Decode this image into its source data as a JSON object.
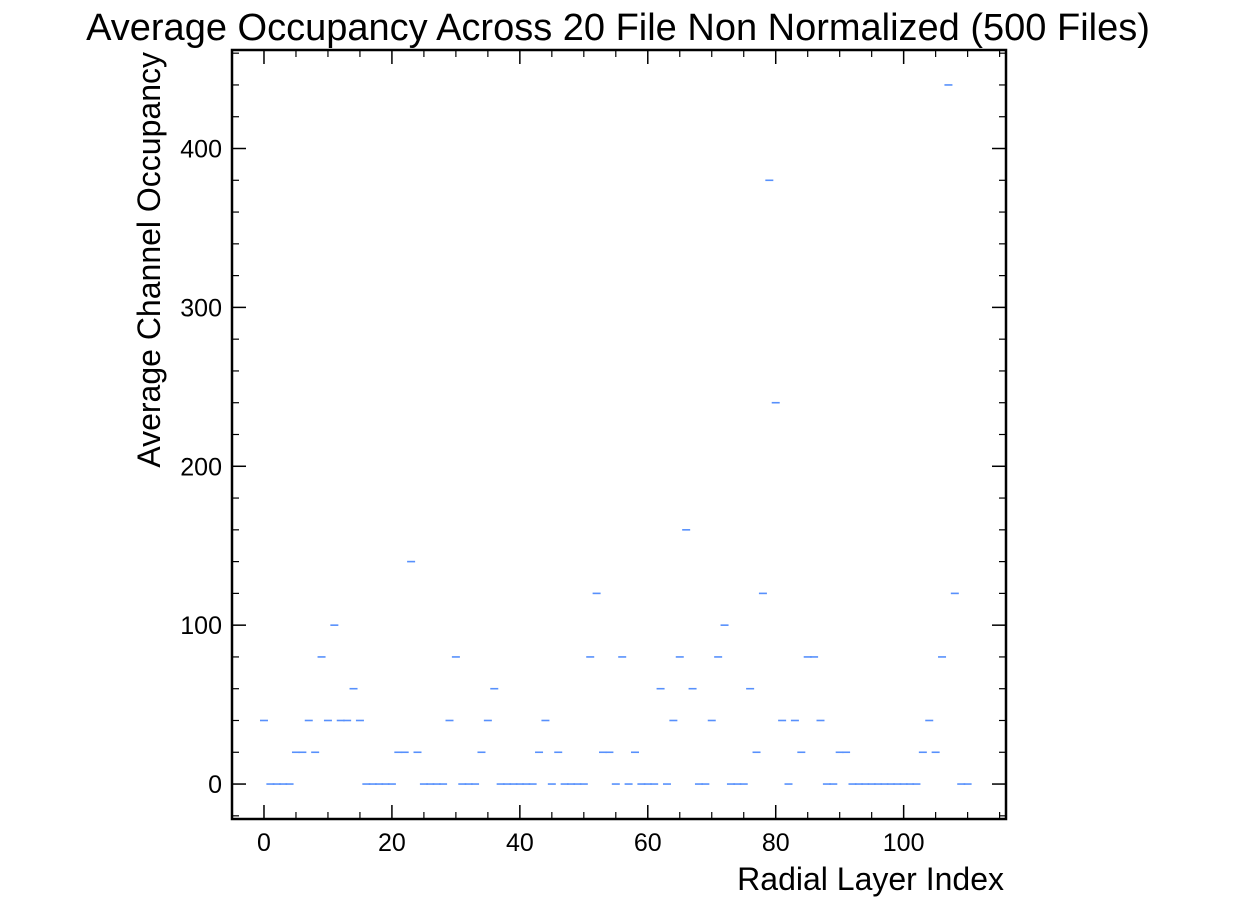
{
  "chart_data": {
    "type": "scatter",
    "title": "Average Occupancy Across 20 File Non Normalized (500 Files)",
    "xlabel": "Radial Layer Index",
    "ylabel": "Average Channel Occupancy",
    "xlim": [
      -5,
      116
    ],
    "ylim": [
      -22,
      462
    ],
    "xticks": [
      0,
      20,
      40,
      60,
      80,
      100
    ],
    "yticks": [
      0,
      100,
      200,
      300,
      400
    ],
    "grid": false,
    "marker_color": "#5790fc",
    "series": [
      {
        "x": [
          0,
          1,
          2,
          3,
          4,
          5,
          6,
          7,
          8,
          9,
          10,
          11,
          12,
          13,
          14,
          15,
          16,
          17,
          18,
          19,
          20,
          21,
          22,
          23,
          24,
          25,
          26,
          27,
          28,
          29,
          30,
          31,
          32,
          33,
          34,
          35,
          36,
          37,
          38,
          39,
          40,
          41,
          42,
          43,
          44,
          45,
          46,
          47,
          48,
          49,
          50,
          51,
          52,
          53,
          54,
          55,
          56,
          57,
          58,
          59,
          60,
          61,
          62,
          63,
          64,
          65,
          66,
          67,
          68,
          69,
          70,
          71,
          72,
          73,
          74,
          75,
          76,
          77,
          78,
          79,
          80,
          81,
          82,
          83,
          84,
          85,
          86,
          87,
          88,
          89,
          90,
          91,
          92,
          93,
          94,
          95,
          96,
          97,
          98,
          99,
          100,
          101,
          102,
          103,
          104,
          105,
          106,
          107,
          108,
          109,
          110
        ],
        "y": [
          40,
          0,
          0,
          0,
          0,
          20,
          20,
          40,
          20,
          80,
          40,
          100,
          40,
          40,
          60,
          40,
          0,
          0,
          0,
          0,
          0,
          20,
          20,
          140,
          20,
          0,
          0,
          0,
          0,
          40,
          80,
          0,
          0,
          0,
          20,
          40,
          60,
          0,
          0,
          0,
          0,
          0,
          0,
          20,
          40,
          0,
          20,
          0,
          0,
          0,
          0,
          80,
          120,
          20,
          20,
          0,
          80,
          0,
          20,
          0,
          0,
          0,
          60,
          0,
          40,
          80,
          160,
          60,
          0,
          0,
          40,
          80,
          100,
          0,
          0,
          0,
          60,
          20,
          120,
          380,
          240,
          40,
          0,
          40,
          20,
          80,
          80,
          40,
          0,
          0,
          20,
          20,
          0,
          0,
          0,
          0,
          0,
          0,
          0,
          0,
          0,
          0,
          0,
          20,
          40,
          20,
          80,
          440,
          120,
          0,
          0
        ]
      }
    ]
  }
}
